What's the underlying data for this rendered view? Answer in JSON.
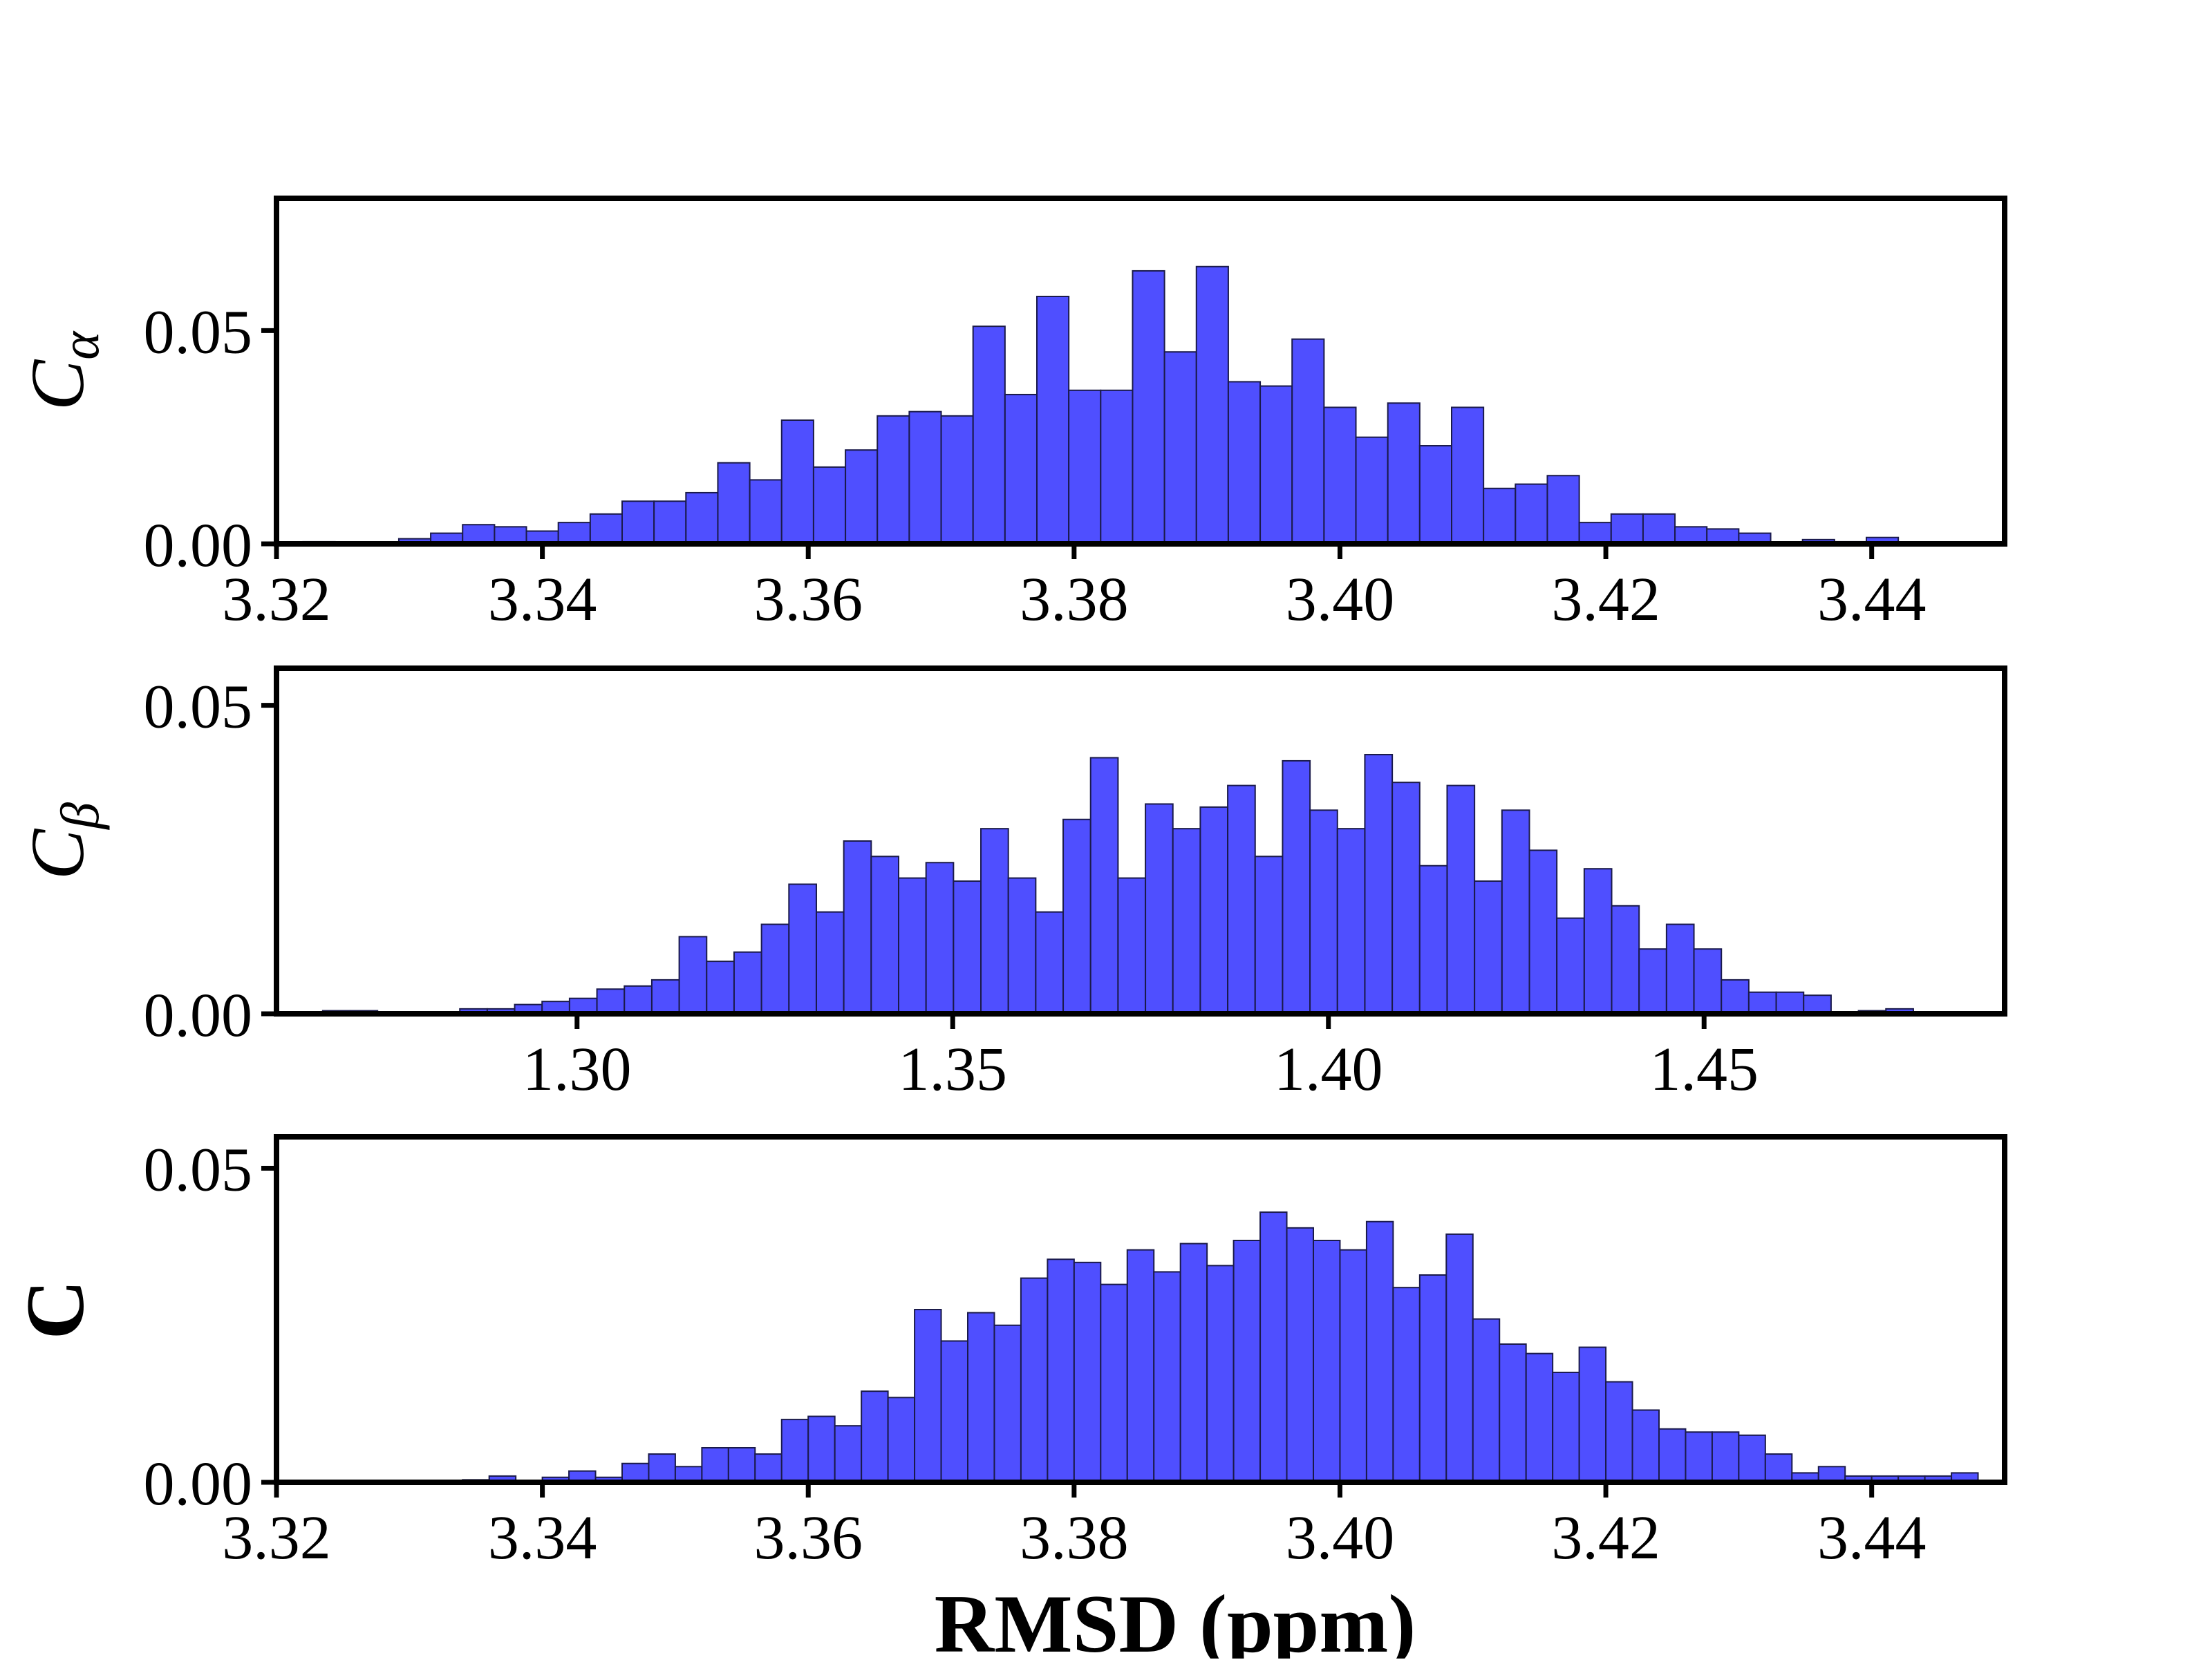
{
  "chart_data": [
    {
      "type": "bar",
      "ylabel": "C",
      "ylabel_sub": "α",
      "xlim": [
        3.32,
        3.45
      ],
      "ylim": [
        0,
        0.081
      ],
      "xticks": [
        "3.32",
        "3.34",
        "3.36",
        "3.38",
        "3.40",
        "3.42",
        "3.44"
      ],
      "yticks": [
        "0.00",
        "0.05"
      ],
      "bin_start": 3.322,
      "bin_width": 0.0024,
      "values": [
        0.0005,
        0.0003,
        0.0003,
        0.0012,
        0.0025,
        0.0045,
        0.004,
        0.003,
        0.005,
        0.007,
        0.01,
        0.01,
        0.012,
        0.019,
        0.015,
        0.029,
        0.018,
        0.022,
        0.03,
        0.031,
        0.03,
        0.051,
        0.035,
        0.058,
        0.036,
        0.036,
        0.064,
        0.045,
        0.065,
        0.038,
        0.037,
        0.048,
        0.032,
        0.025,
        0.033,
        0.023,
        0.032,
        0.013,
        0.014,
        0.016,
        0.005,
        0.007,
        0.007,
        0.004,
        0.0035,
        0.0025,
        0.0,
        0.001,
        0.0005,
        0.0015,
        0.0,
        0.0
      ],
      "bar_color": "#4f4fff",
      "edge_color": "#1a1a4a"
    },
    {
      "type": "bar",
      "ylabel": "C",
      "ylabel_sub": "β",
      "xlim": [
        1.26,
        1.49
      ],
      "ylim": [
        0,
        0.056
      ],
      "xticks": [
        "1.30",
        "1.35",
        "1.40",
        "1.45"
      ],
      "yticks": [
        "0.00",
        "0.05"
      ],
      "bin_start": 1.2625,
      "bin_width": 0.00365,
      "values": [
        0.0002,
        0.0005,
        0.0005,
        0.0002,
        0.0,
        0.0,
        0.0008,
        0.0008,
        0.0015,
        0.002,
        0.0025,
        0.004,
        0.0045,
        0.0055,
        0.0125,
        0.0085,
        0.01,
        0.0145,
        0.021,
        0.0165,
        0.028,
        0.0255,
        0.022,
        0.0245,
        0.0215,
        0.03,
        0.022,
        0.0165,
        0.0315,
        0.0415,
        0.022,
        0.034,
        0.03,
        0.0335,
        0.037,
        0.0255,
        0.041,
        0.033,
        0.03,
        0.042,
        0.0375,
        0.024,
        0.037,
        0.0215,
        0.033,
        0.0265,
        0.0155,
        0.0235,
        0.0175,
        0.0105,
        0.0145,
        0.0105,
        0.0055,
        0.0035,
        0.0035,
        0.003,
        0.0,
        0.0005,
        0.0008
      ],
      "bar_color": "#4f4fff",
      "edge_color": "#1a1a4a"
    },
    {
      "type": "bar",
      "ylabel": "C",
      "ylabel_bold": true,
      "xlabel": "RMSD (ppm)",
      "xlim": [
        3.32,
        3.45
      ],
      "ylim": [
        0,
        0.055
      ],
      "xticks": [
        "3.32",
        "3.34",
        "3.36",
        "3.38",
        "3.40",
        "3.42",
        "3.44"
      ],
      "yticks": [
        "0.00",
        "0.05"
      ],
      "bin_start": 3.322,
      "bin_width": 0.002,
      "values": [
        0.0,
        0.0,
        0.0,
        0.0,
        0.0,
        0.0,
        0.0004,
        0.001,
        0.0002,
        0.0008,
        0.0018,
        0.0008,
        0.003,
        0.0045,
        0.0025,
        0.0055,
        0.0055,
        0.0045,
        0.01,
        0.0105,
        0.009,
        0.0145,
        0.0135,
        0.0275,
        0.0225,
        0.027,
        0.025,
        0.0325,
        0.0355,
        0.035,
        0.0315,
        0.037,
        0.0335,
        0.038,
        0.0345,
        0.0385,
        0.043,
        0.0405,
        0.0385,
        0.037,
        0.0415,
        0.031,
        0.033,
        0.0395,
        0.026,
        0.022,
        0.0205,
        0.0175,
        0.0215,
        0.016,
        0.0115,
        0.0085,
        0.008,
        0.008,
        0.0075,
        0.0045,
        0.0015,
        0.0025,
        0.001,
        0.001,
        0.001,
        0.001,
        0.0015
      ],
      "bar_color": "#4f4fff",
      "edge_color": "#1a1a4a"
    }
  ]
}
